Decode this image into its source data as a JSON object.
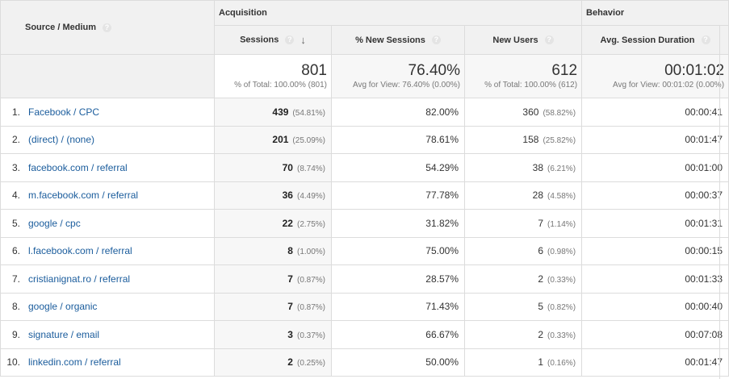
{
  "header": {
    "source_medium_label": "Source / Medium",
    "acquisition_label": "Acquisition",
    "behavior_label": "Behavior",
    "columns": [
      "Sessions",
      "% New Sessions",
      "New Users",
      "Avg. Session Duration"
    ],
    "help_glyph": "?",
    "sort_glyph": "↓",
    "sorted_column": "Sessions"
  },
  "totals": {
    "sessions": {
      "value": "801",
      "sub": "% of Total: 100.00% (801)"
    },
    "new_sessions": {
      "value": "76.40%",
      "sub": "Avg for View: 76.40% (0.00%)"
    },
    "new_users": {
      "value": "612",
      "sub": "% of Total: 100.00% (612)"
    },
    "avg_duration": {
      "value": "00:01:02",
      "sub": "Avg for View: 00:01:02 (0.00%)"
    }
  },
  "rows": [
    {
      "index": "1.",
      "source": "Facebook / CPC",
      "sessions": "439",
      "sessions_pct": "(54.81%)",
      "new_sessions": "82.00%",
      "new_users": "360",
      "new_users_pct": "(58.82%)",
      "duration": "00:00:41"
    },
    {
      "index": "2.",
      "source": "(direct) / (none)",
      "sessions": "201",
      "sessions_pct": "(25.09%)",
      "new_sessions": "78.61%",
      "new_users": "158",
      "new_users_pct": "(25.82%)",
      "duration": "00:01:47"
    },
    {
      "index": "3.",
      "source": "facebook.com / referral",
      "sessions": "70",
      "sessions_pct": "(8.74%)",
      "new_sessions": "54.29%",
      "new_users": "38",
      "new_users_pct": "(6.21%)",
      "duration": "00:01:00"
    },
    {
      "index": "4.",
      "source": "m.facebook.com / referral",
      "sessions": "36",
      "sessions_pct": "(4.49%)",
      "new_sessions": "77.78%",
      "new_users": "28",
      "new_users_pct": "(4.58%)",
      "duration": "00:00:37"
    },
    {
      "index": "5.",
      "source": "google / cpc",
      "sessions": "22",
      "sessions_pct": "(2.75%)",
      "new_sessions": "31.82%",
      "new_users": "7",
      "new_users_pct": "(1.14%)",
      "duration": "00:01:31"
    },
    {
      "index": "6.",
      "source": "l.facebook.com / referral",
      "sessions": "8",
      "sessions_pct": "(1.00%)",
      "new_sessions": "75.00%",
      "new_users": "6",
      "new_users_pct": "(0.98%)",
      "duration": "00:00:15"
    },
    {
      "index": "7.",
      "source": "cristianignat.ro / referral",
      "sessions": "7",
      "sessions_pct": "(0.87%)",
      "new_sessions": "28.57%",
      "new_users": "2",
      "new_users_pct": "(0.33%)",
      "duration": "00:01:33"
    },
    {
      "index": "8.",
      "source": "google / organic",
      "sessions": "7",
      "sessions_pct": "(0.87%)",
      "new_sessions": "71.43%",
      "new_users": "5",
      "new_users_pct": "(0.82%)",
      "duration": "00:00:40"
    },
    {
      "index": "9.",
      "source": "signature / email",
      "sessions": "3",
      "sessions_pct": "(0.37%)",
      "new_sessions": "66.67%",
      "new_users": "2",
      "new_users_pct": "(0.33%)",
      "duration": "00:07:08"
    },
    {
      "index": "10.",
      "source": "linkedin.com / referral",
      "sessions": "2",
      "sessions_pct": "(0.25%)",
      "new_sessions": "50.00%",
      "new_users": "1",
      "new_users_pct": "(0.16%)",
      "duration": "00:01:47"
    }
  ],
  "colors": {
    "link": "#1a5c9c",
    "header_bg": "#f1f1f1",
    "highlight_bg": "#f7f7f7",
    "border": "#dcdcdc"
  }
}
